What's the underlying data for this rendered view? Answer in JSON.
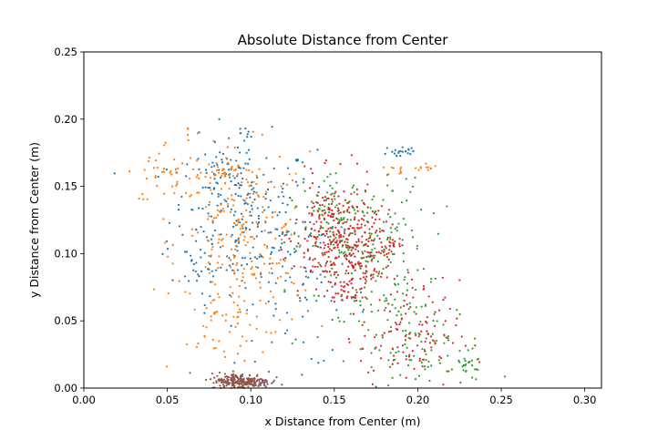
{
  "chart_data": {
    "type": "scatter",
    "title": "Absolute Distance from Center",
    "xlabel": "x Distance from Center (m)",
    "ylabel": "y Distance from Center (m)",
    "xlim": [
      0.0,
      0.31
    ],
    "ylim": [
      0.0,
      0.25
    ],
    "xticks": [
      "0.00",
      "0.05",
      "0.10",
      "0.15",
      "0.20",
      "0.25",
      "0.30"
    ],
    "yticks": [
      "0.00",
      "0.05",
      "0.10",
      "0.15",
      "0.20",
      "0.25"
    ],
    "grid": false,
    "legend": "none",
    "marker_size": 2.2,
    "series": [
      {
        "color": "#1f77b4",
        "clusters": [
          {
            "cx": 0.095,
            "cy": 0.125,
            "sx": 0.022,
            "sy": 0.03,
            "n": 240
          },
          {
            "cx": 0.085,
            "cy": 0.165,
            "sx": 0.008,
            "sy": 0.006,
            "n": 35
          },
          {
            "cx": 0.13,
            "cy": 0.065,
            "sx": 0.02,
            "sy": 0.025,
            "n": 60
          },
          {
            "cx": 0.19,
            "cy": 0.176,
            "sx": 0.006,
            "sy": 0.003,
            "n": 22
          },
          {
            "cx": 0.098,
            "cy": 0.19,
            "sx": 0.002,
            "sy": 0.006,
            "n": 8
          },
          {
            "cx": 0.07,
            "cy": 0.085,
            "sx": 0.006,
            "sy": 0.01,
            "n": 15
          }
        ]
      },
      {
        "color": "#ff7f0e",
        "clusters": [
          {
            "cx": 0.095,
            "cy": 0.105,
            "sx": 0.02,
            "sy": 0.035,
            "n": 260
          },
          {
            "cx": 0.05,
            "cy": 0.16,
            "sx": 0.012,
            "sy": 0.012,
            "n": 40
          },
          {
            "cx": 0.083,
            "cy": 0.162,
            "sx": 0.006,
            "sy": 0.003,
            "n": 30
          },
          {
            "cx": 0.19,
            "cy": 0.162,
            "sx": 0.004,
            "sy": 0.002,
            "n": 10
          },
          {
            "cx": 0.205,
            "cy": 0.166,
            "sx": 0.003,
            "sy": 0.002,
            "n": 10
          },
          {
            "cx": 0.08,
            "cy": 0.04,
            "sx": 0.012,
            "sy": 0.015,
            "n": 25
          },
          {
            "cx": 0.062,
            "cy": 0.188,
            "sx": 0.003,
            "sy": 0.004,
            "n": 5
          }
        ]
      },
      {
        "color": "#2ca02c",
        "clusters": [
          {
            "cx": 0.165,
            "cy": 0.105,
            "sx": 0.02,
            "sy": 0.025,
            "n": 220
          },
          {
            "cx": 0.2,
            "cy": 0.03,
            "sx": 0.02,
            "sy": 0.02,
            "n": 120
          },
          {
            "cx": 0.15,
            "cy": 0.135,
            "sx": 0.01,
            "sy": 0.01,
            "n": 40
          },
          {
            "cx": 0.23,
            "cy": 0.015,
            "sx": 0.004,
            "sy": 0.005,
            "n": 20
          }
        ]
      },
      {
        "color": "#d62728",
        "clusters": [
          {
            "cx": 0.15,
            "cy": 0.115,
            "sx": 0.012,
            "sy": 0.02,
            "n": 240
          },
          {
            "cx": 0.16,
            "cy": 0.09,
            "sx": 0.012,
            "sy": 0.015,
            "n": 120
          },
          {
            "cx": 0.195,
            "cy": 0.04,
            "sx": 0.015,
            "sy": 0.02,
            "n": 110
          },
          {
            "cx": 0.175,
            "cy": 0.11,
            "sx": 0.008,
            "sy": 0.012,
            "n": 50
          }
        ]
      },
      {
        "color": "#9467bd",
        "clusters": [
          {
            "cx": 0.108,
            "cy": 0.003,
            "sx": 0.003,
            "sy": 0.002,
            "n": 12
          }
        ]
      },
      {
        "color": "#8c564b",
        "clusters": [
          {
            "cx": 0.094,
            "cy": 0.005,
            "sx": 0.009,
            "sy": 0.003,
            "n": 240
          }
        ]
      }
    ]
  }
}
